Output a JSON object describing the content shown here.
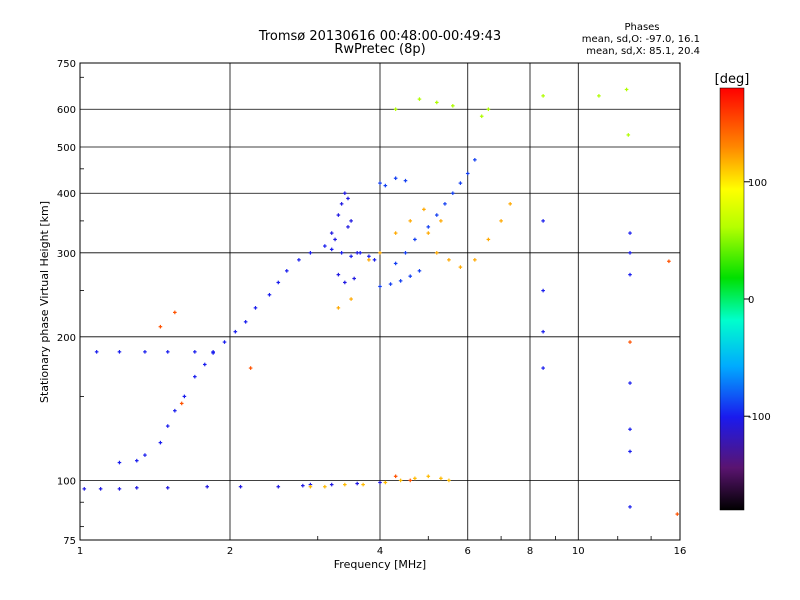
{
  "chart_data": {
    "type": "scatter",
    "title": "Tromsø 20130616 00:48:00-00:49:43",
    "subtitle": "RwPretec (8p)",
    "xlabel": "Frequency [MHz]",
    "ylabel": "Stationary phase Virtual Height [km]",
    "x_scale": "log",
    "y_scale": "log",
    "xlim": [
      1,
      16
    ],
    "ylim": [
      75,
      750
    ],
    "x_ticks": [
      1,
      2,
      4,
      6,
      8,
      10,
      16
    ],
    "x_tick_labels": [
      "1",
      "2",
      "4",
      "6",
      "8",
      "10",
      "16"
    ],
    "y_ticks": [
      75,
      100,
      200,
      300,
      400,
      500,
      600,
      750
    ],
    "y_tick_labels": [
      "75",
      "100",
      "200",
      "300",
      "400",
      "500",
      "600",
      "750"
    ],
    "grid": true,
    "phases_box": {
      "header": "Phases",
      "line1": "mean, sd,O: -97.0, 16.1",
      "line2": "mean, sd,X: 85.1, 20.4"
    },
    "colorbar": {
      "unit_label": "[deg]",
      "range": [
        -180,
        180
      ],
      "tick_values": [
        100,
        0,
        -100
      ],
      "tick_labels": [
        "100",
        "0",
        "-100"
      ]
    },
    "series": [
      {
        "values": [
          [
            1.02,
            96
          ],
          [
            1.1,
            96
          ],
          [
            1.2,
            96
          ],
          [
            1.3,
            96.5
          ],
          [
            1.5,
            96.5
          ],
          [
            1.8,
            97
          ],
          [
            2.1,
            97
          ],
          [
            2.5,
            97
          ],
          [
            2.8,
            97.5
          ],
          [
            2.9,
            98
          ],
          [
            3.2,
            98
          ],
          [
            3.6,
            98.5
          ],
          [
            4.0,
            99
          ]
        ],
        "phase": -105
      },
      {
        "values": [
          [
            1.08,
            186
          ],
          [
            1.2,
            186
          ],
          [
            1.35,
            186
          ],
          [
            1.5,
            186
          ],
          [
            1.7,
            186
          ],
          [
            1.85,
            186
          ],
          [
            1.2,
            109
          ],
          [
            1.3,
            110
          ],
          [
            1.35,
            113
          ],
          [
            1.45,
            120
          ],
          [
            1.5,
            130
          ],
          [
            1.55,
            140
          ],
          [
            1.62,
            150
          ],
          [
            1.7,
            165
          ],
          [
            1.78,
            175
          ],
          [
            1.85,
            185
          ],
          [
            1.95,
            195
          ],
          [
            2.05,
            205
          ],
          [
            2.15,
            215
          ],
          [
            2.25,
            230
          ],
          [
            2.4,
            245
          ],
          [
            2.5,
            260
          ],
          [
            2.6,
            275
          ],
          [
            2.75,
            290
          ],
          [
            2.9,
            300
          ],
          [
            3.1,
            310
          ],
          [
            3.2,
            305
          ],
          [
            3.35,
            300
          ],
          [
            3.5,
            295
          ],
          [
            3.65,
            300
          ],
          [
            3.8,
            295
          ],
          [
            3.9,
            290
          ]
        ],
        "phase": -100
      },
      {
        "values": [
          [
            3.2,
            330
          ],
          [
            3.3,
            360
          ],
          [
            3.35,
            380
          ],
          [
            3.4,
            400
          ],
          [
            3.45,
            390
          ],
          [
            3.5,
            350
          ],
          [
            3.3,
            270
          ],
          [
            3.4,
            260
          ],
          [
            3.55,
            265
          ],
          [
            3.6,
            300
          ],
          [
            3.25,
            320
          ],
          [
            3.45,
            340
          ]
        ],
        "phase": -105
      },
      {
        "values": [
          [
            4.0,
            255
          ],
          [
            4.2,
            258
          ],
          [
            4.4,
            262
          ],
          [
            4.6,
            268
          ],
          [
            4.8,
            275
          ],
          [
            4.3,
            285
          ],
          [
            4.5,
            300
          ],
          [
            4.7,
            320
          ],
          [
            5.0,
            340
          ],
          [
            5.2,
            360
          ],
          [
            5.4,
            380
          ],
          [
            5.6,
            400
          ],
          [
            5.8,
            420
          ],
          [
            6.0,
            440
          ],
          [
            6.2,
            470
          ],
          [
            4.0,
            420
          ],
          [
            4.1,
            415
          ],
          [
            4.3,
            430
          ],
          [
            4.5,
            425
          ]
        ],
        "phase": -90
      },
      {
        "values": [
          [
            3.3,
            230
          ],
          [
            3.5,
            240
          ],
          [
            3.8,
            290
          ],
          [
            4.0,
            300
          ],
          [
            4.3,
            330
          ],
          [
            4.6,
            350
          ],
          [
            4.9,
            370
          ],
          [
            5.2,
            300
          ],
          [
            5.5,
            290
          ],
          [
            5.8,
            280
          ],
          [
            6.2,
            290
          ],
          [
            6.6,
            320
          ],
          [
            7.0,
            350
          ],
          [
            7.3,
            380
          ],
          [
            5.0,
            330
          ],
          [
            5.3,
            350
          ]
        ],
        "phase": 120
      },
      {
        "values": [
          [
            2.9,
            97
          ],
          [
            3.1,
            97
          ],
          [
            3.4,
            98
          ],
          [
            3.7,
            98
          ],
          [
            4.1,
            99
          ],
          [
            4.4,
            100
          ],
          [
            4.7,
            101
          ],
          [
            5.0,
            102
          ],
          [
            5.3,
            101
          ],
          [
            5.5,
            100
          ]
        ],
        "phase": 115
      },
      {
        "values": [
          [
            4.3,
            600
          ],
          [
            4.8,
            630
          ],
          [
            5.2,
            620
          ],
          [
            5.6,
            610
          ],
          [
            6.4,
            580
          ],
          [
            6.6,
            600
          ],
          [
            8.5,
            640
          ],
          [
            11.0,
            640
          ],
          [
            12.5,
            660
          ],
          [
            12.6,
            530
          ]
        ],
        "phase": 60
      },
      {
        "values": [
          [
            8.5,
            350
          ],
          [
            8.5,
            250
          ],
          [
            8.5,
            205
          ],
          [
            8.5,
            172
          ],
          [
            12.7,
            330
          ],
          [
            12.7,
            300
          ],
          [
            12.7,
            270
          ],
          [
            12.7,
            160
          ],
          [
            12.7,
            128
          ],
          [
            12.7,
            115
          ],
          [
            12.7,
            88
          ]
        ],
        "phase": -100
      },
      {
        "values": [
          [
            15.2,
            288
          ],
          [
            15.8,
            85
          ],
          [
            12.7,
            195
          ],
          [
            1.55,
            225
          ],
          [
            1.45,
            210
          ],
          [
            1.6,
            145
          ],
          [
            2.2,
            172
          ],
          [
            4.3,
            102
          ],
          [
            4.6,
            100
          ]
        ],
        "phase": 150
      }
    ]
  }
}
